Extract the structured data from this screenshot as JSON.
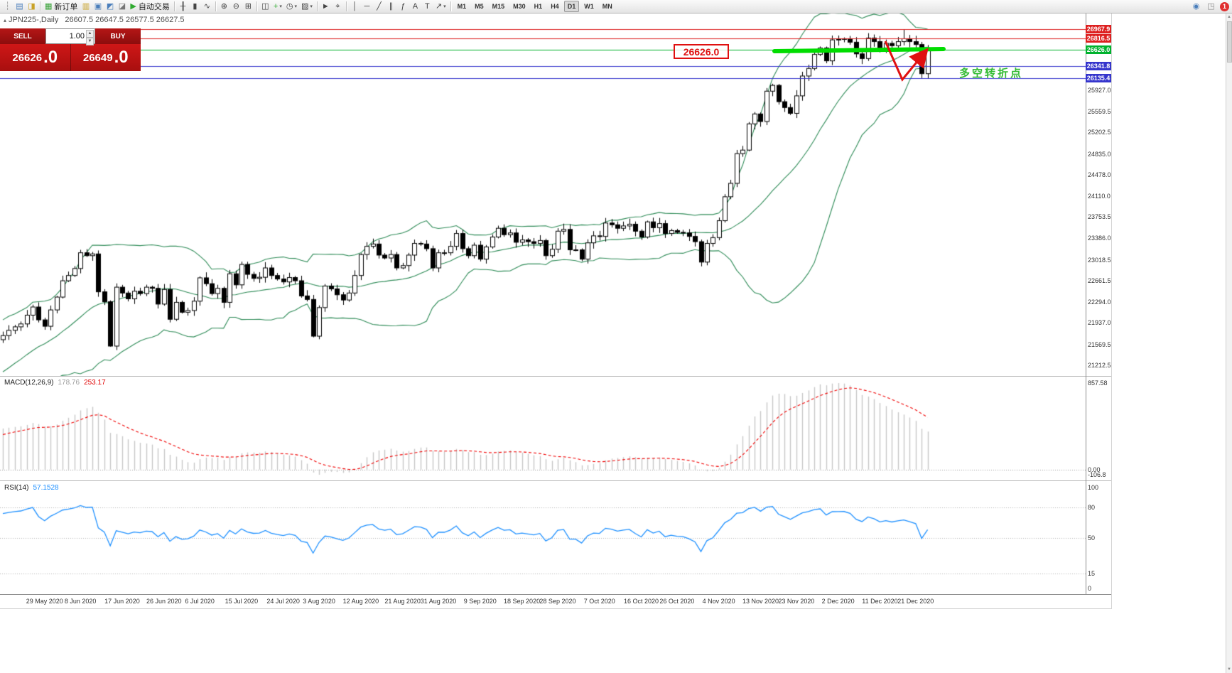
{
  "toolbar": {
    "items": [
      {
        "name": "toolbar-grip",
        "glyph": "┆",
        "color": "#9a9a9a",
        "deco": true
      },
      {
        "name": "new-chart-icon",
        "glyph": "▤",
        "color": "#4a7ebb"
      },
      {
        "name": "profiles-icon",
        "glyph": "◨",
        "color": "#c9a227"
      },
      {
        "sep": true
      },
      {
        "name": "new-order-button",
        "glyph": "▦",
        "color": "#2f9e2f",
        "label": "新订单"
      },
      {
        "name": "market-watch-icon",
        "glyph": "▥",
        "color": "#c9a227"
      },
      {
        "name": "data-window-icon",
        "glyph": "▣",
        "color": "#4a7ebb"
      },
      {
        "name": "navigator-icon",
        "glyph": "◩",
        "color": "#4a7ebb"
      },
      {
        "name": "terminal-icon",
        "glyph": "◪",
        "color": "#777777"
      },
      {
        "name": "autotrading-button",
        "glyph": "▶",
        "color": "#2faa2f",
        "label": "自动交易"
      },
      {
        "sep": true
      },
      {
        "name": "bar-chart-icon",
        "glyph": "╫",
        "color": "#444444"
      },
      {
        "name": "candlestick-chart-icon",
        "glyph": "▮",
        "color": "#444444"
      },
      {
        "name": "line-chart-icon",
        "glyph": "∿",
        "color": "#444444"
      },
      {
        "sep": true
      },
      {
        "name": "zoom-in-icon",
        "glyph": "⊕",
        "color": "#444444"
      },
      {
        "name": "zoom-out-icon",
        "glyph": "⊖",
        "color": "#444444"
      },
      {
        "name": "grid-icon",
        "glyph": "⊞",
        "color": "#444444"
      },
      {
        "sep": true
      },
      {
        "name": "tile-windows-icon",
        "glyph": "◫",
        "color": "#444444"
      },
      {
        "name": "indicators-icon",
        "glyph": "+",
        "color": "#2faa2f",
        "caret": true
      },
      {
        "name": "periods-icon",
        "glyph": "◷",
        "color": "#444444",
        "caret": true
      },
      {
        "name": "templates-icon",
        "glyph": "▨",
        "color": "#444444",
        "caret": true
      },
      {
        "sep": true
      },
      {
        "name": "cursor-icon",
        "glyph": "►",
        "color": "#444444"
      },
      {
        "name": "crosshair-icon",
        "glyph": "⌖",
        "color": "#444444"
      },
      {
        "sep": true
      },
      {
        "name": "vertical-line-icon",
        "glyph": "│",
        "color": "#444444"
      },
      {
        "name": "horizontal-line-icon",
        "glyph": "─",
        "color": "#444444"
      },
      {
        "name": "trendline-icon",
        "glyph": "╱",
        "color": "#444444"
      },
      {
        "name": "channel-icon",
        "glyph": "∥",
        "color": "#444444"
      },
      {
        "name": "fibonacci-icon",
        "glyph": "ƒ",
        "color": "#444444"
      },
      {
        "name": "text-icon",
        "glyph": "A",
        "color": "#444444"
      },
      {
        "name": "label-icon",
        "glyph": "T",
        "color": "#444444"
      },
      {
        "name": "arrows-icon",
        "glyph": "↗",
        "color": "#444444",
        "caret": true
      },
      {
        "sep": true
      }
    ],
    "timeframes": [
      "M1",
      "M5",
      "M15",
      "M30",
      "H1",
      "H4",
      "D1",
      "W1",
      "MN"
    ],
    "active_timeframe": "D1",
    "right_items": [
      {
        "name": "community-icon",
        "glyph": "◉",
        "color": "#4a7ebb"
      },
      {
        "name": "dock-icon",
        "glyph": "◳",
        "color": "#888888"
      }
    ],
    "notification_count": "1"
  },
  "symbol_header": {
    "marker": "▴",
    "symbol": "JPN225-,Daily",
    "ohlc": "26607.5 26647.5 26577.5 26627.5"
  },
  "trade_panel": {
    "sell_label": "SELL",
    "buy_label": "BUY",
    "volume_value": "1.00",
    "sell_price": "26626",
    "sell_price_frac": ".0",
    "buy_price": "26649",
    "buy_price_frac": ".0"
  },
  "annotations": {
    "price_box_text": "26626.0",
    "turning_point_text": "多空转折点",
    "arrow_color": "#e01010",
    "highlight_line_color": "#00dd00"
  },
  "levels": [
    {
      "price_label": "26967.9",
      "value": 26967.9,
      "color": "#dd2020",
      "type": "resistance"
    },
    {
      "price_label": "26816.5",
      "value": 26816.5,
      "color": "#dd2020",
      "type": "resistance"
    },
    {
      "price_label": "26626.0",
      "value": 26626.0,
      "color": "#00b22d",
      "type": "pivot"
    },
    {
      "price_label": "26341.8",
      "value": 26341.8,
      "color": "#3535cc",
      "type": "support"
    },
    {
      "price_label": "26135.4",
      "value": 26135.4,
      "color": "#3535cc",
      "type": "support"
    }
  ],
  "macd": {
    "label": "MACD(12,26,9)",
    "value_main": "178.76",
    "value_signal": "253.17",
    "scale_labels": [
      "857.58",
      "0.00",
      "-106.8"
    ]
  },
  "rsi": {
    "label": "RSI(14)",
    "value": "57.1528",
    "scale_labels": [
      "100",
      "80",
      "50",
      "15",
      "0"
    ],
    "level_lines": [
      80,
      50,
      15
    ]
  },
  "chart_data": {
    "type": "candlestick",
    "symbol": "JPN225",
    "timeframe": "Daily",
    "current_ohlc": {
      "open": 26607.5,
      "high": 26647.5,
      "low": 26577.5,
      "close": 26627.5
    },
    "y_axis_ticks": [
      "25927.0",
      "25559.5",
      "25202.5",
      "24835.0",
      "24478.0",
      "24110.0",
      "23753.5",
      "23386.0",
      "23018.5",
      "22661.5",
      "22294.0",
      "21937.0",
      "21569.5",
      "21212.5"
    ],
    "y_axis_range": {
      "min": 21150,
      "max": 27120
    },
    "date_labels": [
      {
        "label": "29 May 2020",
        "bar": 7
      },
      {
        "label": "8 Jun 2020",
        "bar": 13
      },
      {
        "label": "17 Jun 2020",
        "bar": 20
      },
      {
        "label": "26 Jun 2020",
        "bar": 27
      },
      {
        "label": "6 Jul 2020",
        "bar": 33
      },
      {
        "label": "15 Jul 2020",
        "bar": 40
      },
      {
        "label": "24 Jul 2020",
        "bar": 47
      },
      {
        "label": "3 Aug 2020",
        "bar": 53
      },
      {
        "label": "12 Aug 2020",
        "bar": 60
      },
      {
        "label": "21 Aug 2020",
        "bar": 67
      },
      {
        "label": "31 Aug 2020",
        "bar": 73
      },
      {
        "label": "9 Sep 2020",
        "bar": 80
      },
      {
        "label": "18 Sep 2020",
        "bar": 87
      },
      {
        "label": "28 Sep 2020",
        "bar": 93
      },
      {
        "label": "7 Oct 2020",
        "bar": 100
      },
      {
        "label": "16 Oct 2020",
        "bar": 107
      },
      {
        "label": "26 Oct 2020",
        "bar": 113
      },
      {
        "label": "4 Nov 2020",
        "bar": 120
      },
      {
        "label": "13 Nov 2020",
        "bar": 127
      },
      {
        "label": "23 Nov 2020",
        "bar": 133
      },
      {
        "label": "2 Dec 2020",
        "bar": 140
      },
      {
        "label": "11 Dec 2020",
        "bar": 147
      },
      {
        "label": "21 Dec 2020",
        "bar": 153
      }
    ],
    "indicators": {
      "bollinger": {
        "period": 20,
        "deviation": 2,
        "color": "#2e8b57"
      },
      "macd": {
        "fast": 12,
        "slow": 26,
        "signal": 9,
        "histogram_color": "#c6c6c6",
        "signal_color": "#f00000"
      },
      "rsi": {
        "period": 14,
        "color": "#1e90ff",
        "current": 57.1528
      }
    },
    "first_open": 21650,
    "warmup_closes": [
      20250,
      20420,
      20330,
      20560,
      20500,
      20750,
      20660,
      20930,
      20850,
      21100,
      21000,
      21260,
      21170,
      21420,
      21310,
      21550,
      21460,
      21680,
      21600,
      21700
    ],
    "closes": [
      21720,
      21810,
      21870,
      21920,
      22070,
      22210,
      21990,
      21880,
      22160,
      22380,
      22660,
      22750,
      22870,
      23140,
      23090,
      23120,
      22470,
      22300,
      21540,
      22550,
      22450,
      22350,
      22480,
      22440,
      22550,
      22530,
      22260,
      22510,
      22000,
      22290,
      22120,
      22150,
      22310,
      22710,
      22610,
      22440,
      22530,
      22290,
      22780,
      22590,
      22940,
      22770,
      22700,
      22720,
      22880,
      22750,
      22690,
      22640,
      22715,
      22660,
      22400,
      22340,
      21710,
      22200,
      22570,
      22520,
      22420,
      22330,
      22450,
      22750,
      23110,
      23250,
      23290,
      23100,
      23050,
      23110,
      22880,
      22920,
      23100,
      23300,
      23290,
      23210,
      22880,
      23140,
      23140,
      23250,
      23470,
      23210,
      23090,
      23270,
      23030,
      23240,
      23410,
      23560,
      23450,
      23480,
      23320,
      23360,
      23330,
      23300,
      23350,
      23090,
      23200,
      23510,
      23540,
      23190,
      23190,
      23030,
      23310,
      23430,
      23420,
      23650,
      23620,
      23560,
      23600,
      23630,
      23510,
      23410,
      23670,
      23570,
      23640,
      23470,
      23520,
      23490,
      23480,
      23420,
      23330,
      22980,
      23300,
      23400,
      23690,
      24100,
      24330,
      24840,
      24900,
      25350,
      25520,
      25390,
      25910,
      26010,
      25730,
      25630,
      25530,
      25830,
      26170,
      26300,
      26540,
      26650,
      26430,
      26790,
      26800,
      26810,
      26750,
      26550,
      26470,
      26820,
      26760,
      26650,
      26730,
      26690,
      26760,
      26810,
      26760,
      26710,
      26210,
      26627.5
    ],
    "special_wicks": {
      "13": {
        "high": 23190
      },
      "18": {
        "low": 21530
      },
      "52": {
        "low": 21690
      },
      "145": {
        "high": 26905
      },
      "151": {
        "high": 26968
      },
      "154": {
        "low": 26135
      }
    }
  }
}
